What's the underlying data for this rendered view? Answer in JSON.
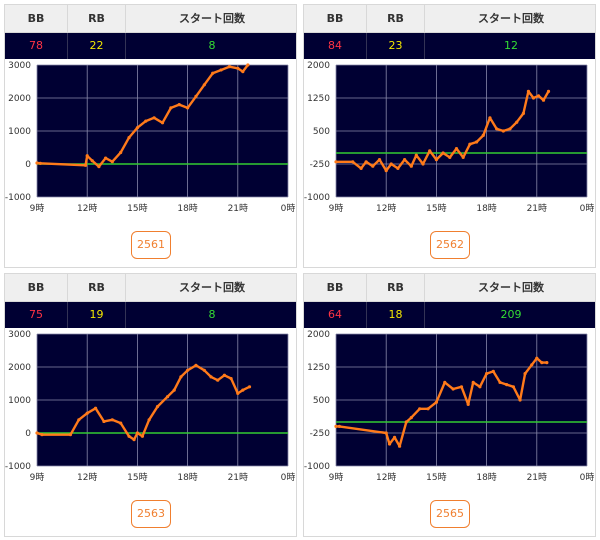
{
  "headers": {
    "bb": "BB",
    "rb": "RB",
    "start": "スタート回数"
  },
  "colors": {
    "bb": "#ff3344",
    "rb": "#f2e600",
    "start": "#33dd33",
    "line": "#ff7a1a",
    "zero": "#33cc33",
    "plot_bg": "#000033",
    "badge": "#f07f2f"
  },
  "panels": [
    {
      "bb": "78",
      "rb": "22",
      "start": "8",
      "machine": "2561",
      "chart_data": {
        "type": "line",
        "ylim": [
          -1000,
          3000
        ],
        "yticks": [
          "3000",
          "2000",
          "1000",
          "0",
          "-1000"
        ],
        "x_labels": [
          "9時",
          "12時",
          "15時",
          "18時",
          "21時",
          "0時"
        ],
        "x": [
          9,
          9.2,
          11.9,
          12,
          12.3,
          12.7,
          13.1,
          13.5,
          14,
          14.5,
          15,
          15.5,
          16,
          16.5,
          17,
          17.5,
          18,
          18.5,
          19,
          19.5,
          20,
          20.5,
          21,
          21.3,
          21.6
        ],
        "y": [
          30,
          20,
          -40,
          250,
          100,
          -80,
          180,
          70,
          350,
          800,
          1100,
          1300,
          1400,
          1250,
          1700,
          1800,
          1700,
          2050,
          2400,
          2750,
          2850,
          2950,
          2900,
          2800,
          3000
        ]
      }
    },
    {
      "bb": "84",
      "rb": "23",
      "start": "12",
      "machine": "2562",
      "chart_data": {
        "type": "line",
        "ylim": [
          -1000,
          2000
        ],
        "yticks": [
          "2000",
          "1250",
          "500",
          "-250",
          "-1000"
        ],
        "x_labels": [
          "9時",
          "12時",
          "15時",
          "18時",
          "21時",
          "0時"
        ],
        "x": [
          9,
          10,
          10.5,
          10.8,
          11.2,
          11.6,
          12,
          12.3,
          12.7,
          13.1,
          13.5,
          13.8,
          14.2,
          14.6,
          15,
          15.4,
          15.8,
          16.2,
          16.6,
          17,
          17.4,
          17.8,
          18.2,
          18.6,
          19,
          19.4,
          19.8,
          20.2,
          20.5,
          20.8,
          21.1,
          21.4,
          21.7
        ],
        "x_note": "",
        "y": [
          -200,
          -200,
          -350,
          -200,
          -300,
          -150,
          -400,
          -250,
          -350,
          -150,
          -300,
          -50,
          -250,
          50,
          -150,
          0,
          -100,
          100,
          -100,
          200,
          250,
          400,
          800,
          550,
          500,
          550,
          700,
          900,
          1400,
          1250,
          1300,
          1200,
          1400
        ]
      }
    },
    {
      "bb": "75",
      "rb": "19",
      "start": "8",
      "machine": "2563",
      "chart_data": {
        "type": "line",
        "ylim": [
          -1000,
          3000
        ],
        "yticks": [
          "3000",
          "2000",
          "1000",
          "0",
          "-1000"
        ],
        "x_labels": [
          "9時",
          "12時",
          "15時",
          "18時",
          "21時",
          "0時"
        ],
        "x": [
          9,
          9.3,
          11,
          11.5,
          12,
          12.5,
          13,
          13.5,
          14,
          14.5,
          14.8,
          15,
          15.3,
          15.7,
          16.2,
          16.8,
          17.2,
          17.6,
          18,
          18.5,
          19,
          19.4,
          19.8,
          20.2,
          20.6,
          21,
          21.3,
          21.7
        ],
        "y": [
          0,
          -50,
          -50,
          400,
          600,
          750,
          350,
          400,
          300,
          -100,
          -200,
          0,
          -100,
          400,
          800,
          1100,
          1300,
          1700,
          1900,
          2050,
          1900,
          1700,
          1600,
          1750,
          1650,
          1200,
          1300,
          1400
        ]
      }
    },
    {
      "bb": "64",
      "rb": "18",
      "start": "209",
      "machine": "2565",
      "chart_data": {
        "type": "line",
        "ylim": [
          -1000,
          2000
        ],
        "yticks": [
          "2000",
          "1250",
          "500",
          "-250",
          "-1000"
        ],
        "x_labels": [
          "9時",
          "12時",
          "15時",
          "18時",
          "21時",
          "0時"
        ],
        "x": [
          9,
          9.2,
          12,
          12.2,
          12.5,
          12.8,
          13.2,
          13.5,
          14,
          14.5,
          15,
          15.5,
          16,
          16.5,
          16.9,
          17.2,
          17.6,
          18,
          18.4,
          18.8,
          19.2,
          19.6,
          20,
          20.3,
          20.7,
          21,
          21.3,
          21.6
        ],
        "y": [
          -100,
          -100,
          -250,
          -500,
          -350,
          -550,
          0,
          100,
          300,
          300,
          450,
          900,
          750,
          800,
          400,
          900,
          800,
          1100,
          1150,
          900,
          850,
          800,
          500,
          1100,
          1300,
          1450,
          1350,
          1350
        ]
      }
    }
  ]
}
